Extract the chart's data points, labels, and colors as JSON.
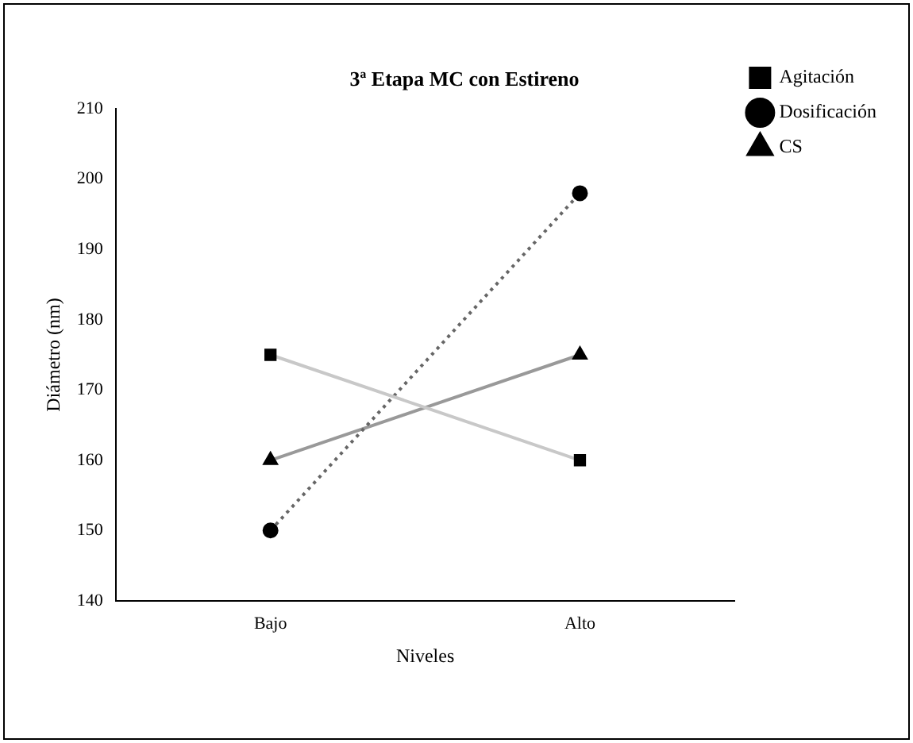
{
  "chart_data": {
    "type": "line",
    "title": "3ª Etapa MC con Estireno",
    "xlabel": "Niveles",
    "ylabel": "Diámetro (nm)",
    "categories": [
      "Bajo",
      "Alto"
    ],
    "series": [
      {
        "name": "Agitación",
        "color": "#c8c8c8",
        "marker": "square",
        "line_style": "solid",
        "values": [
          175,
          160
        ]
      },
      {
        "name": "Dosificación",
        "color": "#666666",
        "marker": "circle",
        "line_style": "dotted",
        "values": [
          150,
          198
        ]
      },
      {
        "name": "CS",
        "color": "#999999",
        "marker": "triangle",
        "line_style": "solid",
        "values": [
          160,
          175
        ]
      }
    ],
    "ylim": [
      140,
      210
    ],
    "yticks": [
      140,
      150,
      160,
      170,
      180,
      190,
      200,
      210
    ],
    "grid": false,
    "legend": "top right"
  }
}
